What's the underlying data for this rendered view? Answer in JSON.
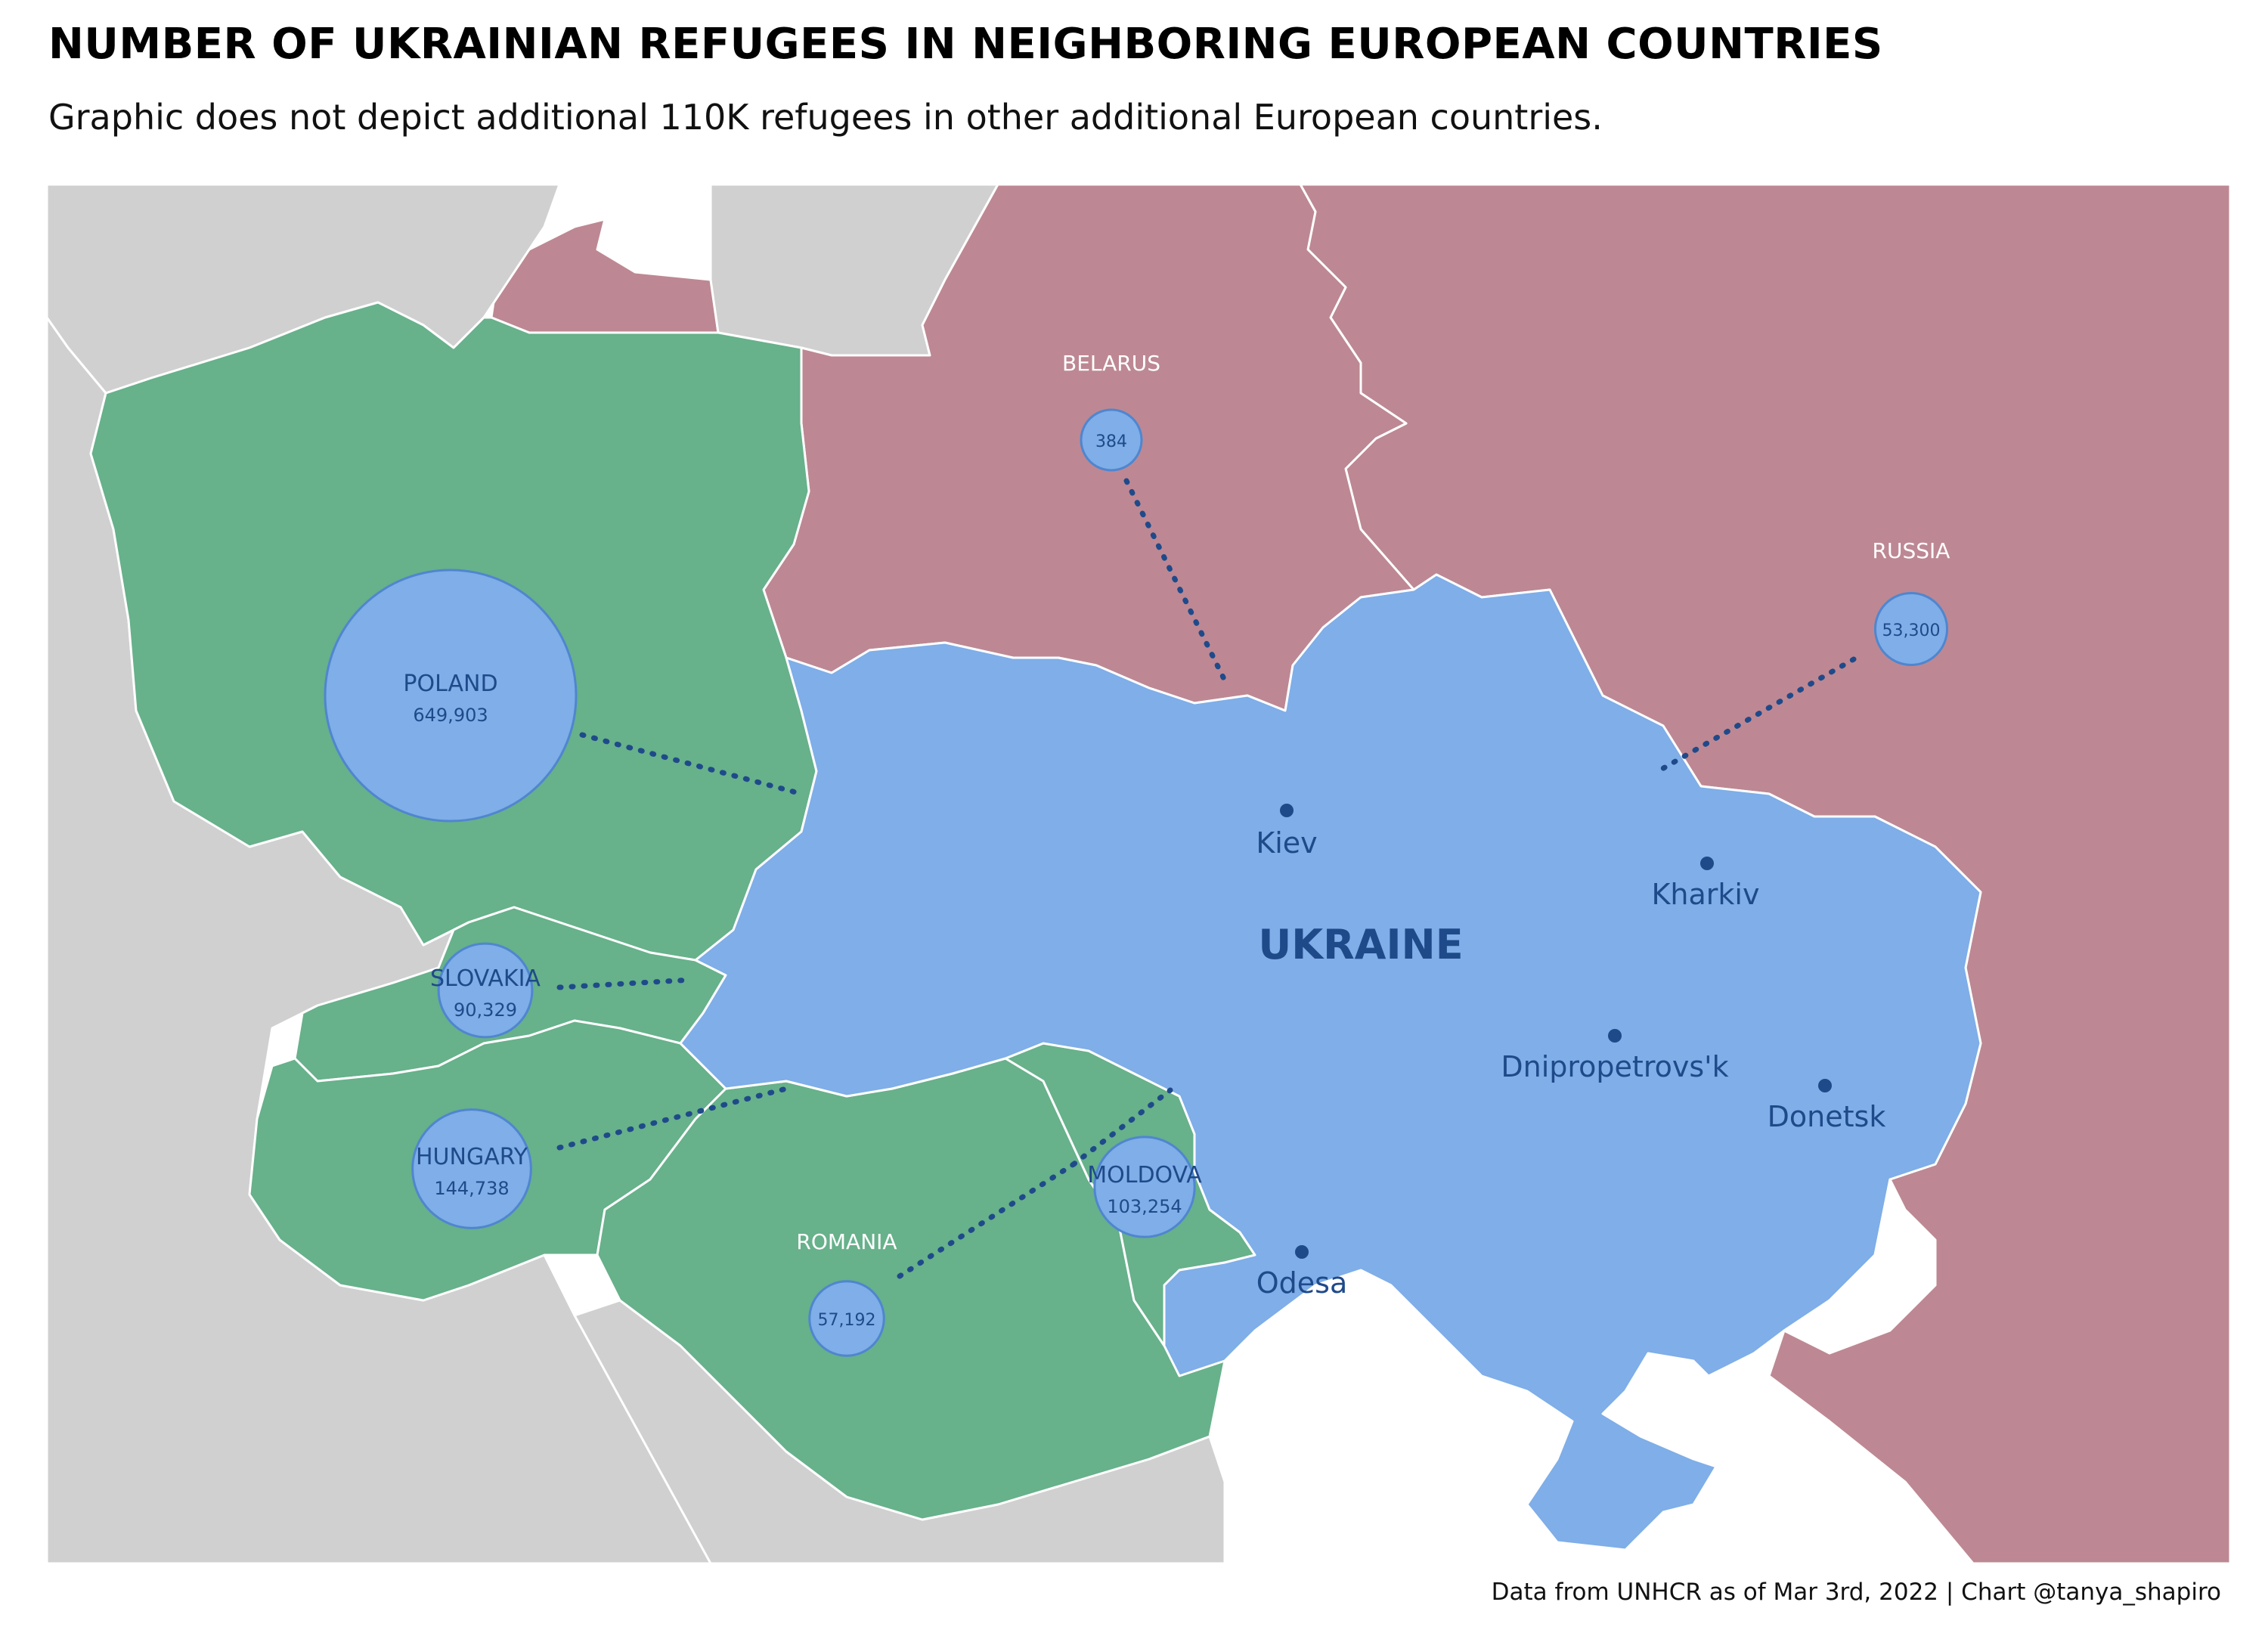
{
  "title": "NUMBER OF UKRAINIAN REFUGEES IN NEIGHBORING EUROPEAN COUNTRIES",
  "subtitle": "Graphic does not depict additional 110K refugees in other additional European countries.",
  "caption": "Data from UNHCR as of Mar 3rd, 2022 | Chart @tanya_shapiro",
  "colors": {
    "ukraine": "#7faee8",
    "neighbor_hosts": "#67b18b",
    "belarus_russia": "#bd8893",
    "other_countries": "#d0d0d0",
    "bubble_fill": "#7faee8",
    "bubble_stroke": "#4f86cf",
    "text_dark_blue": "#1f4a8a"
  },
  "labels": {
    "ukraine": "UKRAINE",
    "belarus": "BELARUS",
    "russia": "RUSSIA",
    "romania": "ROMANIA"
  },
  "cities": [
    {
      "name": "Kiev"
    },
    {
      "name": "Kharkiv"
    },
    {
      "name": "Dnipropetrovs'k"
    },
    {
      "name": "Donetsk"
    },
    {
      "name": "Odesa"
    }
  ],
  "chart_data": {
    "type": "bubble-map",
    "value_label": "refugees",
    "countries": [
      {
        "country": "POLAND",
        "refugees": 649903,
        "label": "649,903"
      },
      {
        "country": "HUNGARY",
        "refugees": 144738,
        "label": "144,738"
      },
      {
        "country": "MOLDOVA",
        "refugees": 103254,
        "label": "103,254"
      },
      {
        "country": "SLOVAKIA",
        "refugees": 90329,
        "label": "90,329"
      },
      {
        "country": "ROMANIA",
        "refugees": 57192,
        "label": "57,192"
      },
      {
        "country": "RUSSIA",
        "refugees": 53300,
        "label": "53,300"
      },
      {
        "country": "BELARUS",
        "refugees": 384,
        "label": "384"
      }
    ]
  }
}
